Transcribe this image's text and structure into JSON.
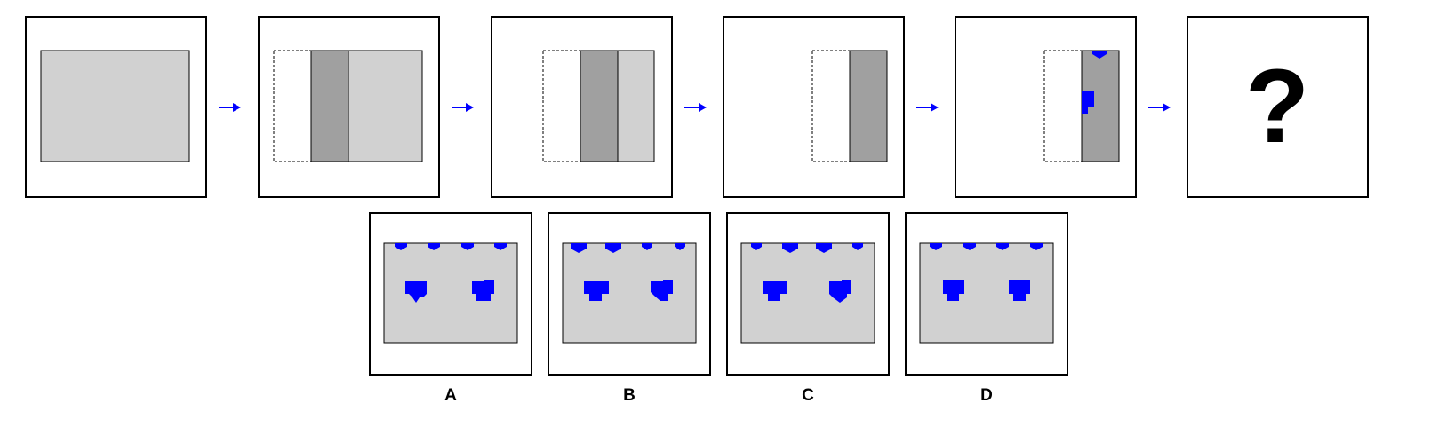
{
  "question_mark": "?",
  "options": [
    {
      "label": "A"
    },
    {
      "label": "B"
    },
    {
      "label": "C"
    },
    {
      "label": "D"
    }
  ],
  "colors": {
    "paper": "#d1d1d1",
    "folded": "#a0a0a0",
    "hole": "#0000ff",
    "arrow": "#0000ff"
  }
}
